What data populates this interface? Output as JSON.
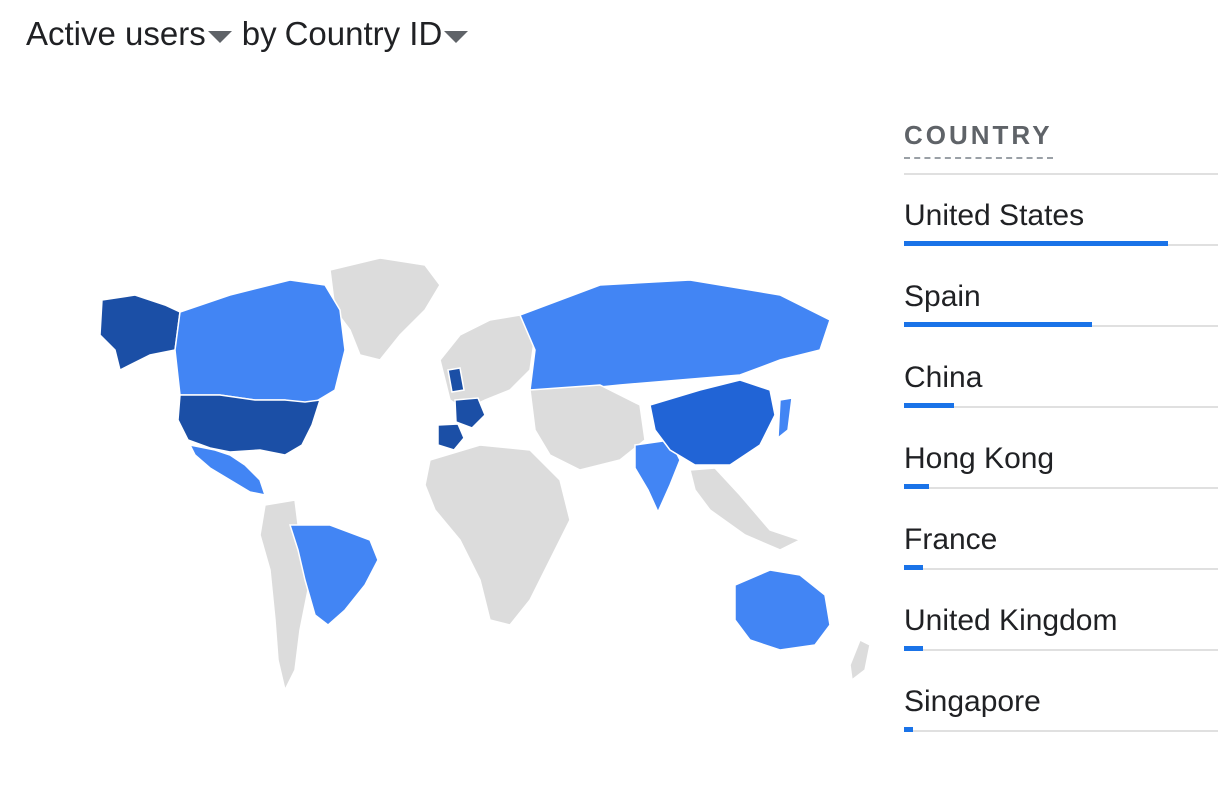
{
  "header": {
    "metric": "Active users",
    "connector": "by",
    "dimension": "Country ID"
  },
  "legend": {
    "header": "COUNTRY"
  },
  "colors": {
    "dark": "#1b4fa6",
    "mid": "#2164d6",
    "light": "#4285f4",
    "none": "#dcdcdc",
    "bar": "#1a73e8"
  },
  "chart_data": {
    "type": "map",
    "rows": [
      {
        "country": "United States",
        "share": 0.84
      },
      {
        "country": "Spain",
        "share": 0.6
      },
      {
        "country": "China",
        "share": 0.16
      },
      {
        "country": "Hong Kong",
        "share": 0.08
      },
      {
        "country": "France",
        "share": 0.06
      },
      {
        "country": "United Kingdom",
        "share": 0.06
      },
      {
        "country": "Singapore",
        "share": 0.03
      }
    ]
  }
}
